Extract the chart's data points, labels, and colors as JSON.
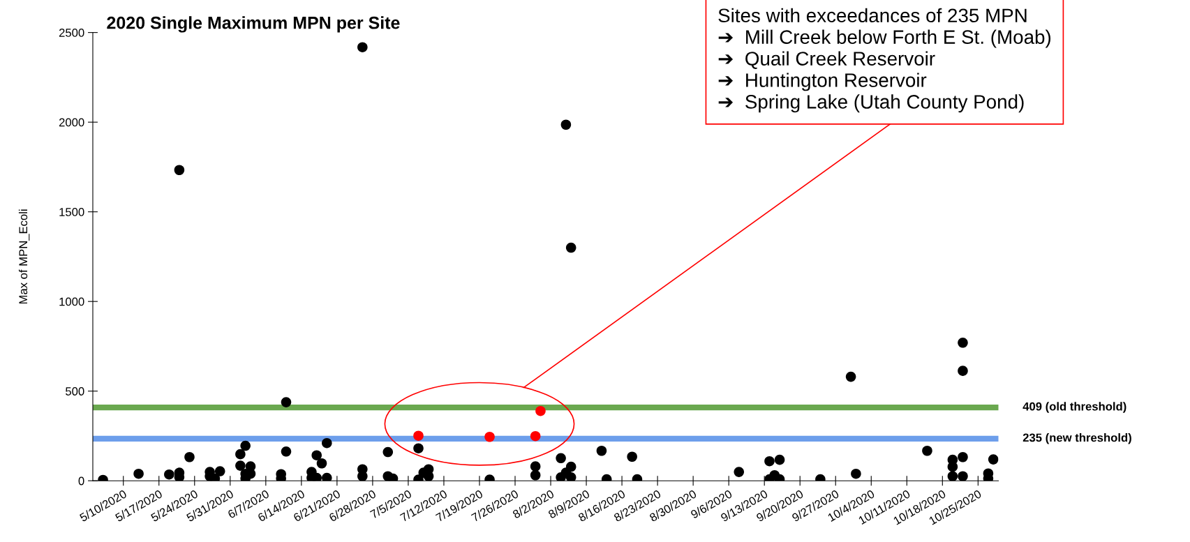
{
  "chart_data": {
    "type": "scatter",
    "title": "2020 Single Maximum MPN per Site",
    "ylabel": "Max of MPN_Ecoli",
    "xlim": [
      "2020-05-04",
      "2020-10-29"
    ],
    "ylim": [
      0,
      2500
    ],
    "yticks": [
      0,
      500,
      1000,
      1500,
      2000,
      2500
    ],
    "xticks": [
      {
        "value": "2020-05-10",
        "label": "5/10/2020"
      },
      {
        "value": "2020-05-17",
        "label": "5/17/2020"
      },
      {
        "value": "2020-05-24",
        "label": "5/24/2020"
      },
      {
        "value": "2020-05-31",
        "label": "5/31/2020"
      },
      {
        "value": "2020-06-07",
        "label": "6/7/2020"
      },
      {
        "value": "2020-06-14",
        "label": "6/14/2020"
      },
      {
        "value": "2020-06-21",
        "label": "6/21/2020"
      },
      {
        "value": "2020-06-28",
        "label": "6/28/2020"
      },
      {
        "value": "2020-07-05",
        "label": "7/5/2020"
      },
      {
        "value": "2020-07-12",
        "label": "7/12/2020"
      },
      {
        "value": "2020-07-19",
        "label": "7/19/2020"
      },
      {
        "value": "2020-07-26",
        "label": "7/26/2020"
      },
      {
        "value": "2020-08-02",
        "label": "8/2/2020"
      },
      {
        "value": "2020-08-09",
        "label": "8/9/2020"
      },
      {
        "value": "2020-08-16",
        "label": "8/16/2020"
      },
      {
        "value": "2020-08-23",
        "label": "8/23/2020"
      },
      {
        "value": "2020-08-30",
        "label": "8/30/2020"
      },
      {
        "value": "2020-09-06",
        "label": "9/6/2020"
      },
      {
        "value": "2020-09-13",
        "label": "9/13/2020"
      },
      {
        "value": "2020-09-20",
        "label": "9/20/2020"
      },
      {
        "value": "2020-09-27",
        "label": "9/27/2020"
      },
      {
        "value": "2020-10-04",
        "label": "10/4/2020"
      },
      {
        "value": "2020-10-11",
        "label": "10/11/2020"
      },
      {
        "value": "2020-10-18",
        "label": "10/18/2020"
      },
      {
        "value": "2020-10-25",
        "label": "10/25/2020"
      }
    ],
    "grid": false,
    "marker": "circle",
    "series": [
      {
        "color": "#000000",
        "x": [
          "2020-05-06",
          "2020-05-13",
          "2020-05-19",
          "2020-05-21",
          "2020-05-21",
          "2020-05-21",
          "2020-05-23",
          "2020-05-27",
          "2020-05-27",
          "2020-05-28",
          "2020-05-29",
          "2020-06-02",
          "2020-06-02",
          "2020-06-03",
          "2020-06-03",
          "2020-06-03",
          "2020-06-04",
          "2020-06-04",
          "2020-06-10",
          "2020-06-10",
          "2020-06-11",
          "2020-06-11",
          "2020-06-16",
          "2020-06-16",
          "2020-06-17",
          "2020-06-17",
          "2020-06-18",
          "2020-06-19",
          "2020-06-19",
          "2020-06-26",
          "2020-06-26",
          "2020-06-26",
          "2020-07-01",
          "2020-07-01",
          "2020-07-02",
          "2020-07-07",
          "2020-07-07",
          "2020-07-08",
          "2020-07-09",
          "2020-07-09",
          "2020-07-21",
          "2020-07-30",
          "2020-07-30",
          "2020-08-04",
          "2020-08-04",
          "2020-08-05",
          "2020-08-05",
          "2020-08-06",
          "2020-08-06",
          "2020-08-06",
          "2020-08-12",
          "2020-08-13",
          "2020-08-18",
          "2020-08-19",
          "2020-09-08",
          "2020-09-14",
          "2020-09-14",
          "2020-09-16",
          "2020-09-15",
          "2020-09-16",
          "2020-09-24",
          "2020-09-30",
          "2020-10-01",
          "2020-10-15",
          "2020-10-20",
          "2020-10-20",
          "2020-10-20",
          "2020-10-22",
          "2020-10-22",
          "2020-10-22",
          "2020-10-22",
          "2020-10-27",
          "2020-10-27",
          "2020-10-28"
        ],
        "values": [
          5,
          39,
          35,
          45,
          20,
          1733,
          132,
          49,
          25,
          12,
          53,
          148,
          84,
          195,
          39,
          12,
          80,
          39,
          37,
          12,
          438,
          163,
          49,
          16,
          142,
          16,
          97,
          210,
          16,
          2418,
          64,
          25,
          160,
          25,
          12,
          181,
          6,
          45,
          64,
          25,
          6,
          80,
          31,
          126,
          19,
          1986,
          45,
          1300,
          78,
          19,
          167,
          8,
          134,
          8,
          49,
          109,
          8,
          117,
          31,
          8,
          8,
          580,
          39,
          167,
          117,
          78,
          25,
          770,
          613,
          132,
          25,
          41,
          12,
          119
        ]
      },
      {
        "color": "#ff0000",
        "x": [
          "2020-07-07",
          "2020-07-21",
          "2020-07-30",
          "2020-07-31"
        ],
        "values": [
          251,
          245,
          249,
          389
        ]
      }
    ],
    "ref_lines": [
      {
        "axis": "y",
        "value": 409,
        "label": "409 (old threshold)",
        "color": "#6aa84f"
      },
      {
        "axis": "y",
        "value": 235,
        "label": "235 (new threshold)",
        "color": "#6d9eeb"
      }
    ],
    "annotations": [
      "Sites with exceedances of 235 MPN\n➔  Mill Creek below Forth E St. (Moab)\n➔  Quail Creek Reservoir\n➔  Huntington Reservoir\n➔  Spring Lake (Utah County Pond)"
    ]
  }
}
